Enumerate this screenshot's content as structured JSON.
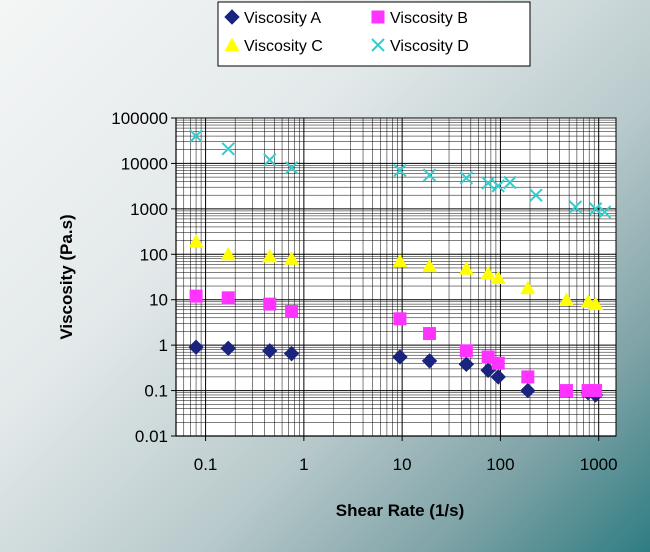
{
  "chart_data": {
    "type": "scatter",
    "title": "",
    "xlabel": "Shear Rate (1/s)",
    "ylabel": "Viscosity (Pa.s)",
    "x_scale": "log",
    "y_scale": "log",
    "xlim": [
      0.05,
      1500
    ],
    "ylim": [
      0.01,
      100000
    ],
    "x_ticks": [
      "0.1",
      "1",
      "10",
      "100",
      "1000"
    ],
    "y_ticks": [
      "0.01",
      "0.1",
      "1",
      "10",
      "100",
      "1000",
      "10000",
      "100000"
    ],
    "grid": true,
    "legend_position": "top",
    "series": [
      {
        "name": "Viscosity A",
        "marker": "diamond",
        "color": "#1a237e",
        "points": [
          [
            0.08,
            0.9
          ],
          [
            0.17,
            0.85
          ],
          [
            0.45,
            0.75
          ],
          [
            0.75,
            0.65
          ],
          [
            9.5,
            0.55
          ],
          [
            19,
            0.45
          ],
          [
            45,
            0.38
          ],
          [
            75,
            0.28
          ],
          [
            95,
            0.2
          ],
          [
            190,
            0.1
          ],
          [
            780,
            0.09
          ],
          [
            930,
            0.08
          ]
        ]
      },
      {
        "name": "Viscosity B",
        "marker": "square",
        "color": "#ff33ff",
        "points": [
          [
            0.08,
            12
          ],
          [
            0.17,
            11
          ],
          [
            0.45,
            8
          ],
          [
            0.75,
            5.5
          ],
          [
            9.5,
            3.8
          ],
          [
            19,
            1.8
          ],
          [
            45,
            0.75
          ],
          [
            75,
            0.55
          ],
          [
            95,
            0.4
          ],
          [
            190,
            0.2
          ],
          [
            470,
            0.1
          ],
          [
            780,
            0.1
          ],
          [
            930,
            0.1
          ]
        ]
      },
      {
        "name": "Viscosity C",
        "marker": "triangle",
        "color": "#ffff00",
        "points": [
          [
            0.08,
            190
          ],
          [
            0.17,
            100
          ],
          [
            0.45,
            90
          ],
          [
            0.75,
            80
          ],
          [
            9.5,
            70
          ],
          [
            19,
            55
          ],
          [
            45,
            48
          ],
          [
            75,
            38
          ],
          [
            95,
            30
          ],
          [
            190,
            18
          ],
          [
            470,
            10
          ],
          [
            780,
            9
          ],
          [
            930,
            8
          ]
        ]
      },
      {
        "name": "Viscosity D",
        "marker": "x",
        "color": "#33cccc",
        "points": [
          [
            0.08,
            40000
          ],
          [
            0.17,
            21000
          ],
          [
            0.45,
            12000
          ],
          [
            0.75,
            8000
          ],
          [
            9.5,
            7000
          ],
          [
            19,
            5500
          ],
          [
            45,
            4800
          ],
          [
            75,
            3700
          ],
          [
            95,
            3200
          ],
          [
            125,
            3800
          ],
          [
            230,
            2000
          ],
          [
            580,
            1100
          ],
          [
            930,
            1000
          ],
          [
            1150,
            850
          ]
        ]
      }
    ]
  }
}
